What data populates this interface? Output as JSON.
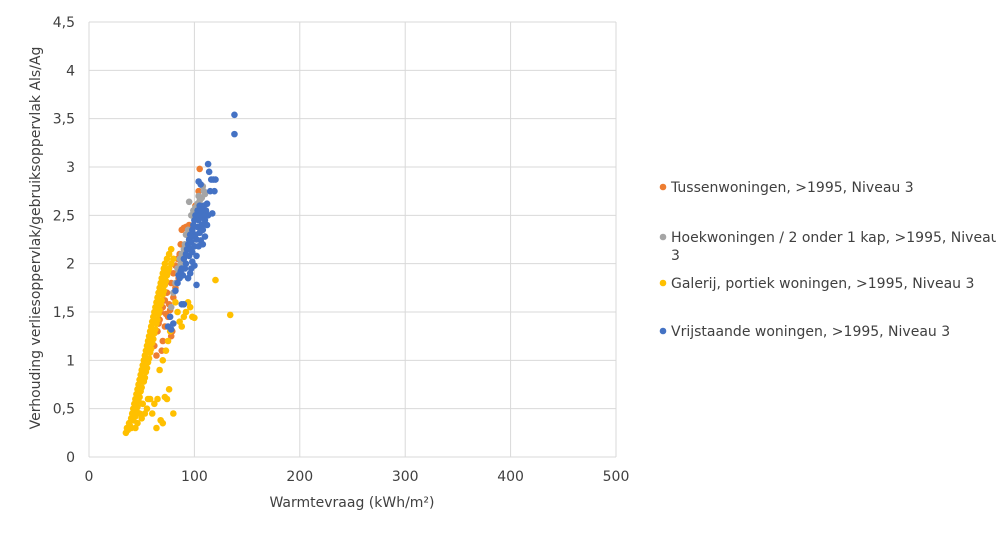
{
  "chart_data": {
    "type": "scatter",
    "xlabel": "Warmtevraag (kWh/m²)",
    "ylabel": "Verhouding verliesoppervlak/gebruiksoppervlak Als/Ag",
    "xlim": [
      0,
      500
    ],
    "ylim": [
      0,
      4.5
    ],
    "x_ticks": [
      "0",
      "100",
      "200",
      "300",
      "400",
      "500"
    ],
    "y_ticks": [
      "0",
      "0,5",
      "1",
      "1,5",
      "2",
      "2,5",
      "3",
      "3,5",
      "4",
      "4,5"
    ],
    "grid": true,
    "legend_position": "right",
    "series": [
      {
        "name": "Tussenwoningen, >1995, Niveau 3",
        "color": "#ED7D31",
        "points": [
          [
            65,
            1.3
          ],
          [
            67,
            1.42
          ],
          [
            68,
            1.5
          ],
          [
            70,
            1.55
          ],
          [
            70,
            1.2
          ],
          [
            72,
            1.62
          ],
          [
            72,
            1.35
          ],
          [
            74,
            1.7
          ],
          [
            75,
            1.45
          ],
          [
            76,
            1.58
          ],
          [
            78,
            1.8
          ],
          [
            78,
            1.25
          ],
          [
            80,
            1.9
          ],
          [
            80,
            1.65
          ],
          [
            82,
            1.98
          ],
          [
            82,
            1.75
          ],
          [
            84,
            2.05
          ],
          [
            85,
            1.85
          ],
          [
            86,
            2.1
          ],
          [
            87,
            2.2
          ],
          [
            88,
            2.35
          ],
          [
            90,
            2.37
          ],
          [
            92,
            2.38
          ],
          [
            95,
            2.4
          ],
          [
            98,
            2.5
          ],
          [
            100,
            2.55
          ],
          [
            101,
            2.6
          ],
          [
            104,
            2.75
          ],
          [
            105,
            2.98
          ],
          [
            62,
            1.15
          ],
          [
            64,
            1.05
          ],
          [
            66,
            1.38
          ],
          [
            69,
            1.1
          ],
          [
            73,
            1.48
          ],
          [
            77,
            1.52
          ],
          [
            79,
            1.3
          ]
        ]
      },
      {
        "name": "Hoekwoningen / 2 onder 1 kap, >1995, Niveau 3",
        "color": "#A5A5A5",
        "points": [
          [
            78,
            1.55
          ],
          [
            80,
            1.7
          ],
          [
            82,
            1.8
          ],
          [
            84,
            1.95
          ],
          [
            86,
            2.05
          ],
          [
            88,
            2.1
          ],
          [
            90,
            2.15
          ],
          [
            92,
            2.3
          ],
          [
            94,
            2.35
          ],
          [
            95,
            2.64
          ],
          [
            97,
            2.5
          ],
          [
            99,
            2.55
          ],
          [
            101,
            2.58
          ],
          [
            103,
            2.62
          ],
          [
            104,
            2.7
          ],
          [
            105,
            2.65
          ],
          [
            107,
            2.68
          ],
          [
            108,
            2.8
          ],
          [
            109,
            2.75
          ],
          [
            110,
            2.72
          ],
          [
            85,
            1.9
          ],
          [
            87,
            2.0
          ],
          [
            91,
            2.2
          ]
        ]
      },
      {
        "name": "Galerij, portiek woningen, >1995, Niveau 3",
        "color": "#FFC000",
        "points": [
          [
            35,
            0.25
          ],
          [
            36,
            0.3
          ],
          [
            37,
            0.28
          ],
          [
            38,
            0.35
          ],
          [
            39,
            0.32
          ],
          [
            40,
            0.4
          ],
          [
            40,
            0.3
          ],
          [
            41,
            0.45
          ],
          [
            42,
            0.38
          ],
          [
            42,
            0.5
          ],
          [
            43,
            0.55
          ],
          [
            44,
            0.42
          ],
          [
            44,
            0.6
          ],
          [
            45,
            0.65
          ],
          [
            45,
            0.48
          ],
          [
            46,
            0.7
          ],
          [
            46,
            0.52
          ],
          [
            47,
            0.58
          ],
          [
            47,
            0.75
          ],
          [
            48,
            0.8
          ],
          [
            48,
            0.62
          ],
          [
            49,
            0.68
          ],
          [
            49,
            0.85
          ],
          [
            50,
            0.9
          ],
          [
            50,
            0.72
          ],
          [
            51,
            0.55
          ],
          [
            51,
            0.95
          ],
          [
            52,
            1.0
          ],
          [
            52,
            0.78
          ],
          [
            53,
            0.82
          ],
          [
            53,
            1.05
          ],
          [
            54,
            1.1
          ],
          [
            54,
            0.88
          ],
          [
            55,
            0.92
          ],
          [
            55,
            1.15
          ],
          [
            56,
            1.2
          ],
          [
            56,
            0.98
          ],
          [
            57,
            1.02
          ],
          [
            57,
            1.25
          ],
          [
            58,
            1.3
          ],
          [
            58,
            1.08
          ],
          [
            59,
            1.12
          ],
          [
            59,
            1.35
          ],
          [
            60,
            1.4
          ],
          [
            60,
            1.18
          ],
          [
            61,
            1.22
          ],
          [
            61,
            1.45
          ],
          [
            62,
            1.5
          ],
          [
            62,
            1.28
          ],
          [
            63,
            1.32
          ],
          [
            63,
            1.55
          ],
          [
            64,
            1.6
          ],
          [
            64,
            1.38
          ],
          [
            65,
            1.42
          ],
          [
            65,
            1.65
          ],
          [
            66,
            1.7
          ],
          [
            66,
            1.48
          ],
          [
            67,
            1.52
          ],
          [
            67,
            1.75
          ],
          [
            68,
            1.8
          ],
          [
            68,
            1.58
          ],
          [
            69,
            1.62
          ],
          [
            69,
            1.85
          ],
          [
            70,
            1.9
          ],
          [
            70,
            1.68
          ],
          [
            71,
            1.72
          ],
          [
            71,
            1.95
          ],
          [
            72,
            2.0
          ],
          [
            72,
            1.78
          ],
          [
            73,
            1.82
          ],
          [
            74,
            2.05
          ],
          [
            74,
            1.88
          ],
          [
            75,
            1.92
          ],
          [
            76,
            2.1
          ],
          [
            76,
            1.95
          ],
          [
            78,
            2.15
          ],
          [
            78,
            2.0
          ],
          [
            80,
            2.05
          ],
          [
            82,
            1.6
          ],
          [
            84,
            1.5
          ],
          [
            86,
            1.4
          ],
          [
            88,
            1.35
          ],
          [
            90,
            1.45
          ],
          [
            92,
            1.5
          ],
          [
            94,
            1.6
          ],
          [
            96,
            1.55
          ],
          [
            98,
            1.45
          ],
          [
            100,
            1.44
          ],
          [
            55,
            0.5
          ],
          [
            58,
            0.6
          ],
          [
            60,
            0.45
          ],
          [
            62,
            0.55
          ],
          [
            65,
            0.6
          ],
          [
            68,
            0.38
          ],
          [
            70,
            0.35
          ],
          [
            72,
            0.62
          ],
          [
            74,
            0.6
          ],
          [
            76,
            0.7
          ],
          [
            80,
            0.45
          ],
          [
            64,
            0.3
          ],
          [
            67,
            0.9
          ],
          [
            70,
            1.0
          ],
          [
            73,
            1.1
          ],
          [
            75,
            1.2
          ],
          [
            77,
            1.3
          ],
          [
            50,
            0.4
          ],
          [
            53,
            0.45
          ],
          [
            56,
            0.6
          ],
          [
            44,
            0.3
          ],
          [
            46,
            0.35
          ],
          [
            48,
            0.45
          ],
          [
            120,
            1.83
          ],
          [
            134,
            1.47
          ]
        ]
      },
      {
        "name": "Vrijstaande woningen, >1995, Niveau 3",
        "color": "#4472C4",
        "points": [
          [
            75,
            1.35
          ],
          [
            77,
            1.45
          ],
          [
            78,
            1.32
          ],
          [
            80,
            1.38
          ],
          [
            82,
            1.72
          ],
          [
            84,
            1.8
          ],
          [
            85,
            1.88
          ],
          [
            86,
            1.85
          ],
          [
            87,
            1.92
          ],
          [
            88,
            1.58
          ],
          [
            88,
            1.95
          ],
          [
            89,
            1.88
          ],
          [
            90,
            1.58
          ],
          [
            90,
            2.05
          ],
          [
            91,
            1.95
          ],
          [
            92,
            2.1
          ],
          [
            92,
            2.0
          ],
          [
            93,
            2.15
          ],
          [
            94,
            1.85
          ],
          [
            94,
            2.2
          ],
          [
            95,
            2.08
          ],
          [
            95,
            2.25
          ],
          [
            96,
            2.15
          ],
          [
            96,
            2.3
          ],
          [
            97,
            1.95
          ],
          [
            97,
            2.22
          ],
          [
            98,
            2.35
          ],
          [
            98,
            2.12
          ],
          [
            99,
            2.28
          ],
          [
            99,
            2.4
          ],
          [
            100,
            2.18
          ],
          [
            100,
            2.45
          ],
          [
            101,
            2.3
          ],
          [
            101,
            2.5
          ],
          [
            102,
            2.25
          ],
          [
            102,
            1.78
          ],
          [
            103,
            2.38
          ],
          [
            103,
            2.55
          ],
          [
            104,
            2.45
          ],
          [
            104,
            2.85
          ],
          [
            105,
            2.32
          ],
          [
            105,
            2.6
          ],
          [
            106,
            2.5
          ],
          [
            106,
            2.82
          ],
          [
            107,
            2.4
          ],
          [
            107,
            2.55
          ],
          [
            108,
            2.35
          ],
          [
            108,
            2.48
          ],
          [
            109,
            2.6
          ],
          [
            110,
            2.28
          ],
          [
            110,
            2.45
          ],
          [
            111,
            2.55
          ],
          [
            112,
            2.4
          ],
          [
            112,
            2.62
          ],
          [
            113,
            2.5
          ],
          [
            113,
            3.03
          ],
          [
            114,
            2.95
          ],
          [
            115,
            2.75
          ],
          [
            116,
            2.87
          ],
          [
            117,
            2.52
          ],
          [
            118,
            2.87
          ],
          [
            119,
            2.75
          ],
          [
            120,
            2.87
          ],
          [
            138,
            3.54
          ],
          [
            138,
            3.34
          ],
          [
            100,
            1.98
          ],
          [
            102,
            2.08
          ],
          [
            104,
            2.18
          ],
          [
            106,
            2.24
          ],
          [
            108,
            2.2
          ],
          [
            110,
            2.5
          ],
          [
            98,
            2.02
          ],
          [
            96,
            1.9
          ]
        ]
      }
    ]
  }
}
